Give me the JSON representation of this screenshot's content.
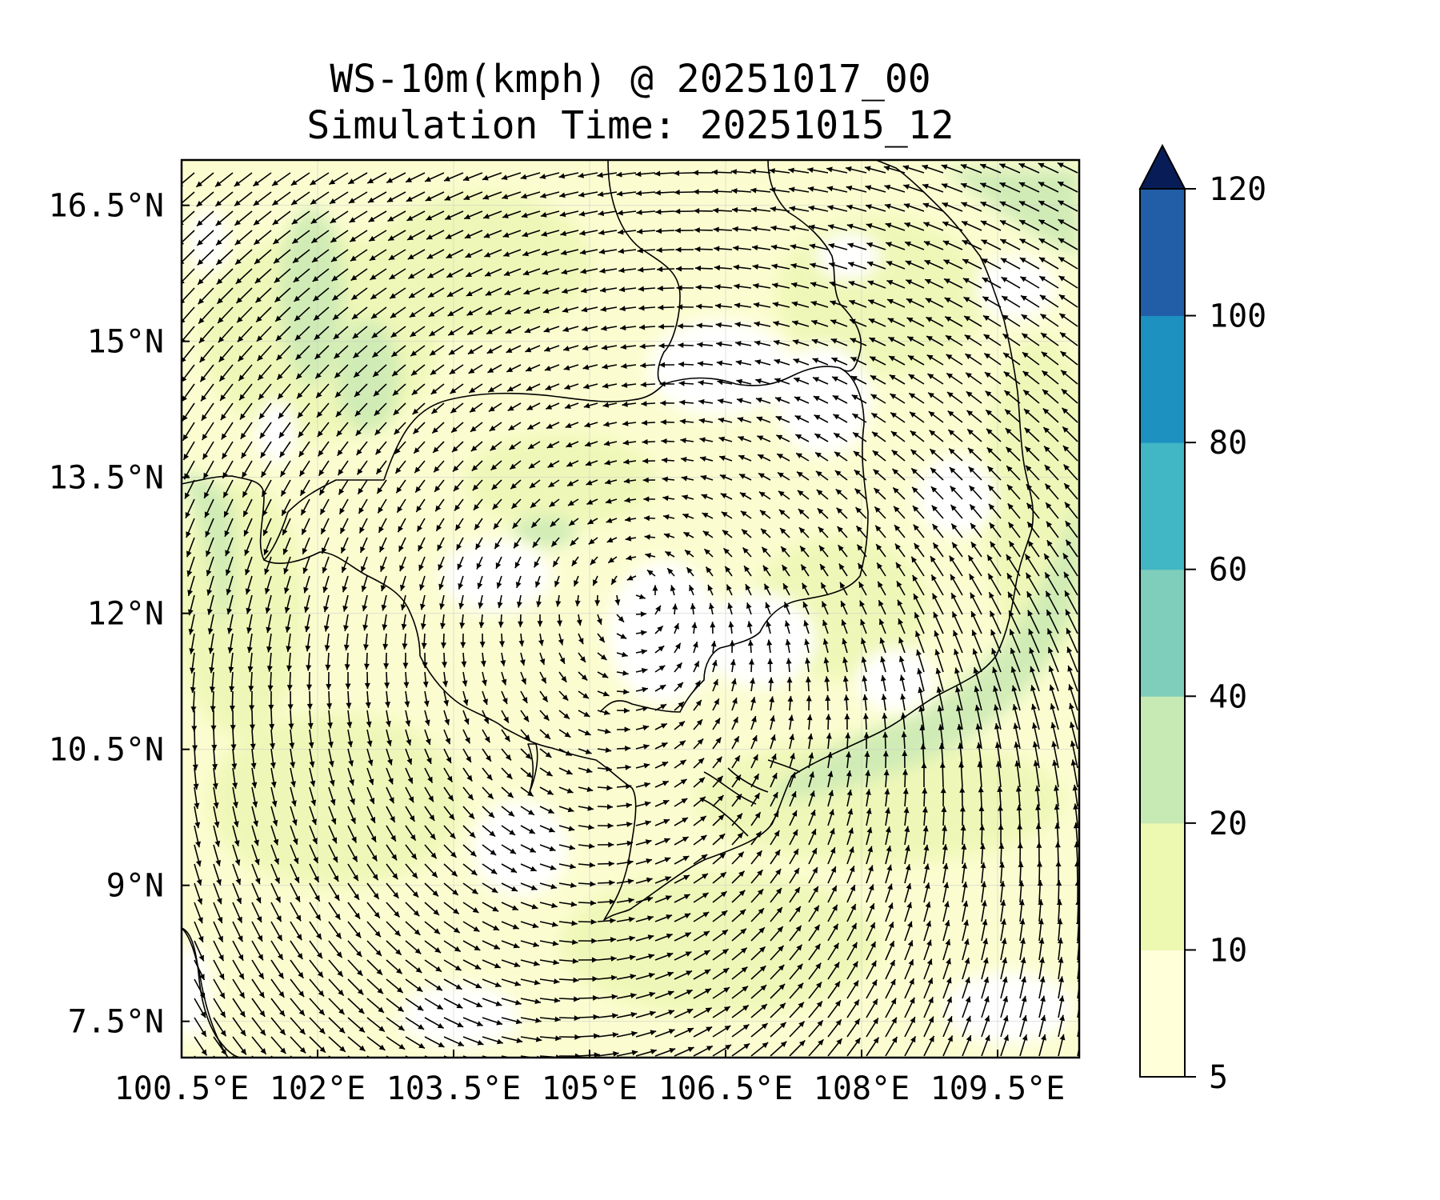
{
  "title": {
    "line1": "WS-10m(kmph) @ 20251017_00",
    "line2": "Simulation Time: 20251015_12"
  },
  "map": {
    "x_axis": {
      "ticks": [
        100.5,
        102,
        103.5,
        105,
        106.5,
        108,
        109.5
      ],
      "labels": [
        "100.5°E",
        "102°E",
        "103.5°E",
        "105°E",
        "106.5°E",
        "108°E",
        "109.5°E"
      ],
      "range": [
        100.5,
        110.4
      ]
    },
    "y_axis": {
      "ticks": [
        7.5,
        9,
        10.5,
        12,
        13.5,
        15,
        16.5
      ],
      "labels": [
        "7.5°N",
        "9°N",
        "10.5°N",
        "12°N",
        "13.5°N",
        "15°N",
        "16.5°N"
      ],
      "range": [
        7.1,
        17.0
      ]
    },
    "gridlines": true
  },
  "colorbar": {
    "levels": [
      5,
      10,
      20,
      40,
      60,
      80,
      100,
      120
    ],
    "labels": [
      "5",
      "10",
      "20",
      "40",
      "60",
      "80",
      "100",
      "120"
    ],
    "colors": [
      "#ffffd9",
      "#edf8b1",
      "#c7e9b4",
      "#7fcdbb",
      "#41b6c4",
      "#1d91c0",
      "#225ea8",
      "#253494"
    ],
    "extend_color": "#081d58",
    "extend": "max"
  }
}
